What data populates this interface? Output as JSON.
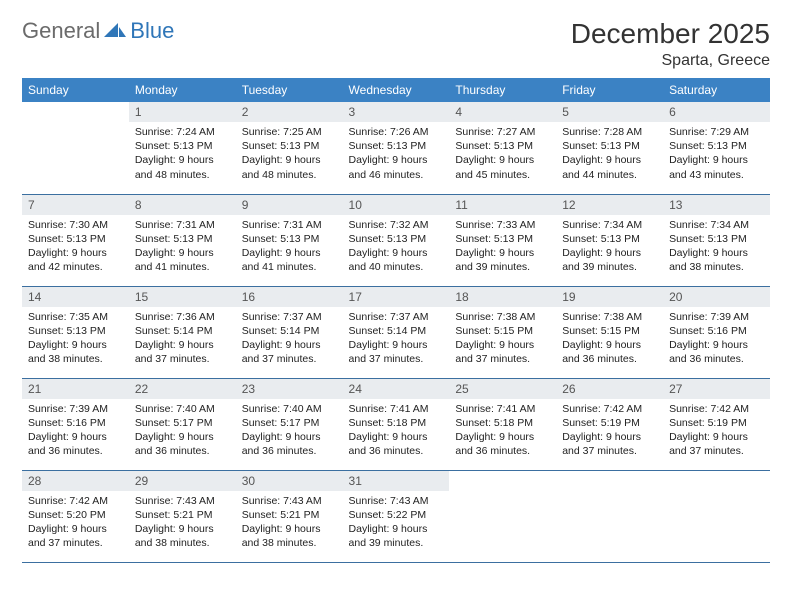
{
  "logo": {
    "general": "General",
    "blue": "Blue",
    "icon_color": "#2f76b8"
  },
  "title": "December 2025",
  "location": "Sparta, Greece",
  "colors": {
    "header_bg": "#3b82c4",
    "header_text": "#ffffff",
    "daynum_bg": "#e9ecef",
    "row_border": "#3b6fa0",
    "body_text": "#222222",
    "title_text": "#333333"
  },
  "days_of_week": [
    "Sunday",
    "Monday",
    "Tuesday",
    "Wednesday",
    "Thursday",
    "Friday",
    "Saturday"
  ],
  "weeks": [
    [
      {
        "n": "",
        "sr": "",
        "ss": "",
        "dl": ""
      },
      {
        "n": "1",
        "sr": "Sunrise: 7:24 AM",
        "ss": "Sunset: 5:13 PM",
        "dl": "Daylight: 9 hours and 48 minutes."
      },
      {
        "n": "2",
        "sr": "Sunrise: 7:25 AM",
        "ss": "Sunset: 5:13 PM",
        "dl": "Daylight: 9 hours and 48 minutes."
      },
      {
        "n": "3",
        "sr": "Sunrise: 7:26 AM",
        "ss": "Sunset: 5:13 PM",
        "dl": "Daylight: 9 hours and 46 minutes."
      },
      {
        "n": "4",
        "sr": "Sunrise: 7:27 AM",
        "ss": "Sunset: 5:13 PM",
        "dl": "Daylight: 9 hours and 45 minutes."
      },
      {
        "n": "5",
        "sr": "Sunrise: 7:28 AM",
        "ss": "Sunset: 5:13 PM",
        "dl": "Daylight: 9 hours and 44 minutes."
      },
      {
        "n": "6",
        "sr": "Sunrise: 7:29 AM",
        "ss": "Sunset: 5:13 PM",
        "dl": "Daylight: 9 hours and 43 minutes."
      }
    ],
    [
      {
        "n": "7",
        "sr": "Sunrise: 7:30 AM",
        "ss": "Sunset: 5:13 PM",
        "dl": "Daylight: 9 hours and 42 minutes."
      },
      {
        "n": "8",
        "sr": "Sunrise: 7:31 AM",
        "ss": "Sunset: 5:13 PM",
        "dl": "Daylight: 9 hours and 41 minutes."
      },
      {
        "n": "9",
        "sr": "Sunrise: 7:31 AM",
        "ss": "Sunset: 5:13 PM",
        "dl": "Daylight: 9 hours and 41 minutes."
      },
      {
        "n": "10",
        "sr": "Sunrise: 7:32 AM",
        "ss": "Sunset: 5:13 PM",
        "dl": "Daylight: 9 hours and 40 minutes."
      },
      {
        "n": "11",
        "sr": "Sunrise: 7:33 AM",
        "ss": "Sunset: 5:13 PM",
        "dl": "Daylight: 9 hours and 39 minutes."
      },
      {
        "n": "12",
        "sr": "Sunrise: 7:34 AM",
        "ss": "Sunset: 5:13 PM",
        "dl": "Daylight: 9 hours and 39 minutes."
      },
      {
        "n": "13",
        "sr": "Sunrise: 7:34 AM",
        "ss": "Sunset: 5:13 PM",
        "dl": "Daylight: 9 hours and 38 minutes."
      }
    ],
    [
      {
        "n": "14",
        "sr": "Sunrise: 7:35 AM",
        "ss": "Sunset: 5:13 PM",
        "dl": "Daylight: 9 hours and 38 minutes."
      },
      {
        "n": "15",
        "sr": "Sunrise: 7:36 AM",
        "ss": "Sunset: 5:14 PM",
        "dl": "Daylight: 9 hours and 37 minutes."
      },
      {
        "n": "16",
        "sr": "Sunrise: 7:37 AM",
        "ss": "Sunset: 5:14 PM",
        "dl": "Daylight: 9 hours and 37 minutes."
      },
      {
        "n": "17",
        "sr": "Sunrise: 7:37 AM",
        "ss": "Sunset: 5:14 PM",
        "dl": "Daylight: 9 hours and 37 minutes."
      },
      {
        "n": "18",
        "sr": "Sunrise: 7:38 AM",
        "ss": "Sunset: 5:15 PM",
        "dl": "Daylight: 9 hours and 37 minutes."
      },
      {
        "n": "19",
        "sr": "Sunrise: 7:38 AM",
        "ss": "Sunset: 5:15 PM",
        "dl": "Daylight: 9 hours and 36 minutes."
      },
      {
        "n": "20",
        "sr": "Sunrise: 7:39 AM",
        "ss": "Sunset: 5:16 PM",
        "dl": "Daylight: 9 hours and 36 minutes."
      }
    ],
    [
      {
        "n": "21",
        "sr": "Sunrise: 7:39 AM",
        "ss": "Sunset: 5:16 PM",
        "dl": "Daylight: 9 hours and 36 minutes."
      },
      {
        "n": "22",
        "sr": "Sunrise: 7:40 AM",
        "ss": "Sunset: 5:17 PM",
        "dl": "Daylight: 9 hours and 36 minutes."
      },
      {
        "n": "23",
        "sr": "Sunrise: 7:40 AM",
        "ss": "Sunset: 5:17 PM",
        "dl": "Daylight: 9 hours and 36 minutes."
      },
      {
        "n": "24",
        "sr": "Sunrise: 7:41 AM",
        "ss": "Sunset: 5:18 PM",
        "dl": "Daylight: 9 hours and 36 minutes."
      },
      {
        "n": "25",
        "sr": "Sunrise: 7:41 AM",
        "ss": "Sunset: 5:18 PM",
        "dl": "Daylight: 9 hours and 36 minutes."
      },
      {
        "n": "26",
        "sr": "Sunrise: 7:42 AM",
        "ss": "Sunset: 5:19 PM",
        "dl": "Daylight: 9 hours and 37 minutes."
      },
      {
        "n": "27",
        "sr": "Sunrise: 7:42 AM",
        "ss": "Sunset: 5:19 PM",
        "dl": "Daylight: 9 hours and 37 minutes."
      }
    ],
    [
      {
        "n": "28",
        "sr": "Sunrise: 7:42 AM",
        "ss": "Sunset: 5:20 PM",
        "dl": "Daylight: 9 hours and 37 minutes."
      },
      {
        "n": "29",
        "sr": "Sunrise: 7:43 AM",
        "ss": "Sunset: 5:21 PM",
        "dl": "Daylight: 9 hours and 38 minutes."
      },
      {
        "n": "30",
        "sr": "Sunrise: 7:43 AM",
        "ss": "Sunset: 5:21 PM",
        "dl": "Daylight: 9 hours and 38 minutes."
      },
      {
        "n": "31",
        "sr": "Sunrise: 7:43 AM",
        "ss": "Sunset: 5:22 PM",
        "dl": "Daylight: 9 hours and 39 minutes."
      },
      {
        "n": "",
        "sr": "",
        "ss": "",
        "dl": ""
      },
      {
        "n": "",
        "sr": "",
        "ss": "",
        "dl": ""
      },
      {
        "n": "",
        "sr": "",
        "ss": "",
        "dl": ""
      }
    ]
  ]
}
